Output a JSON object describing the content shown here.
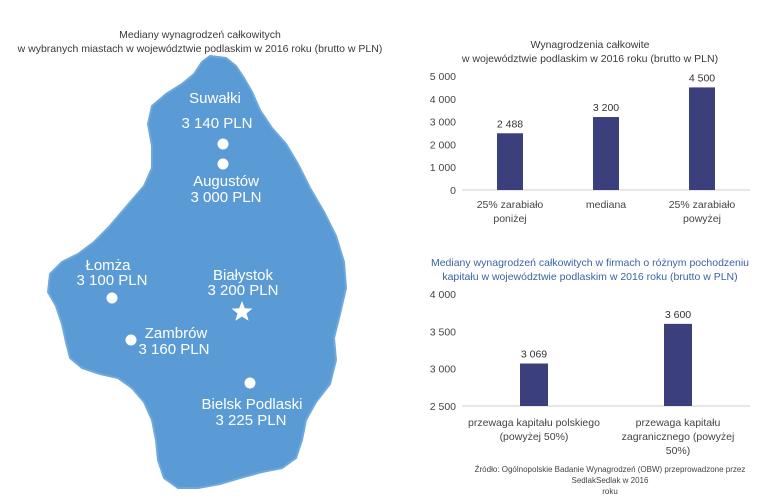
{
  "colors": {
    "map_fill": "#5b9bd5",
    "map_stroke": "#6fa8dc",
    "bar": "#3b3f7c",
    "axis": "#cfcfcf",
    "title_accent": "#3b63a6"
  },
  "map": {
    "title_lines": [
      "Mediany wynagrodzeń całkowitych",
      "w wybranych miastach w województwie podlaskim w 2016 roku (brutto w PLN)"
    ],
    "cities": [
      {
        "name": "Suwałki",
        "value": "3 140 PLN",
        "marker": "dot"
      },
      {
        "name": "Augustów",
        "value": "3 000 PLN",
        "marker": "dot"
      },
      {
        "name": "Łomża",
        "value": "3 100 PLN",
        "marker": "dot"
      },
      {
        "name": "Białystok",
        "value": "3 200 PLN",
        "marker": "star"
      },
      {
        "name": "Zambrów",
        "value": "3 160 PLN",
        "marker": "dot"
      },
      {
        "name": "Bielsk Podlaski",
        "value": "3 225 PLN",
        "marker": "dot"
      }
    ]
  },
  "chart_data": [
    {
      "type": "bar",
      "title_lines": [
        "Wynagrodzenia całkowite",
        "w województwie podlaskim w 2016 roku (brutto w PLN)"
      ],
      "categories": [
        [
          "25% zarabiało",
          "poniżej"
        ],
        [
          "mediana"
        ],
        [
          "25% zarabiało",
          "powyżej"
        ]
      ],
      "values": [
        2488,
        3200,
        4500
      ],
      "value_labels": [
        "2 488",
        "3 200",
        "4 500"
      ],
      "ylim": [
        0,
        5000
      ],
      "yticks": [
        0,
        1000,
        2000,
        3000,
        4000,
        5000
      ],
      "ytick_labels": [
        "0",
        "1 000",
        "2 000",
        "3 000",
        "4 000",
        "5 000"
      ],
      "grid": false
    },
    {
      "type": "bar",
      "title_lines": [
        "Mediany wynagrodzeń całkowitych w firmach o różnym pochodzeniu",
        "kapitału  w województwie podlaskim w 2016 roku (brutto w PLN)"
      ],
      "categories": [
        [
          "przewaga kapitału polskiego",
          "(powyżej 50%)"
        ],
        [
          "przewaga kapitału",
          "zagranicznego (powyżej",
          "50%)"
        ]
      ],
      "values": [
        3069,
        3600
      ],
      "value_labels": [
        "3 069",
        "3 600"
      ],
      "ylim": [
        2500,
        4000
      ],
      "yticks": [
        2500,
        3000,
        3500,
        4000
      ],
      "ytick_labels": [
        "2 500",
        "3 000",
        "3 500",
        "4 000"
      ],
      "grid": false
    }
  ],
  "source_lines": [
    "Źródło: Ogólnopolskie Badanie Wynagrodzeń (OBW) przeprowadzone przez SedlakSedlak w 2016",
    "roku"
  ]
}
